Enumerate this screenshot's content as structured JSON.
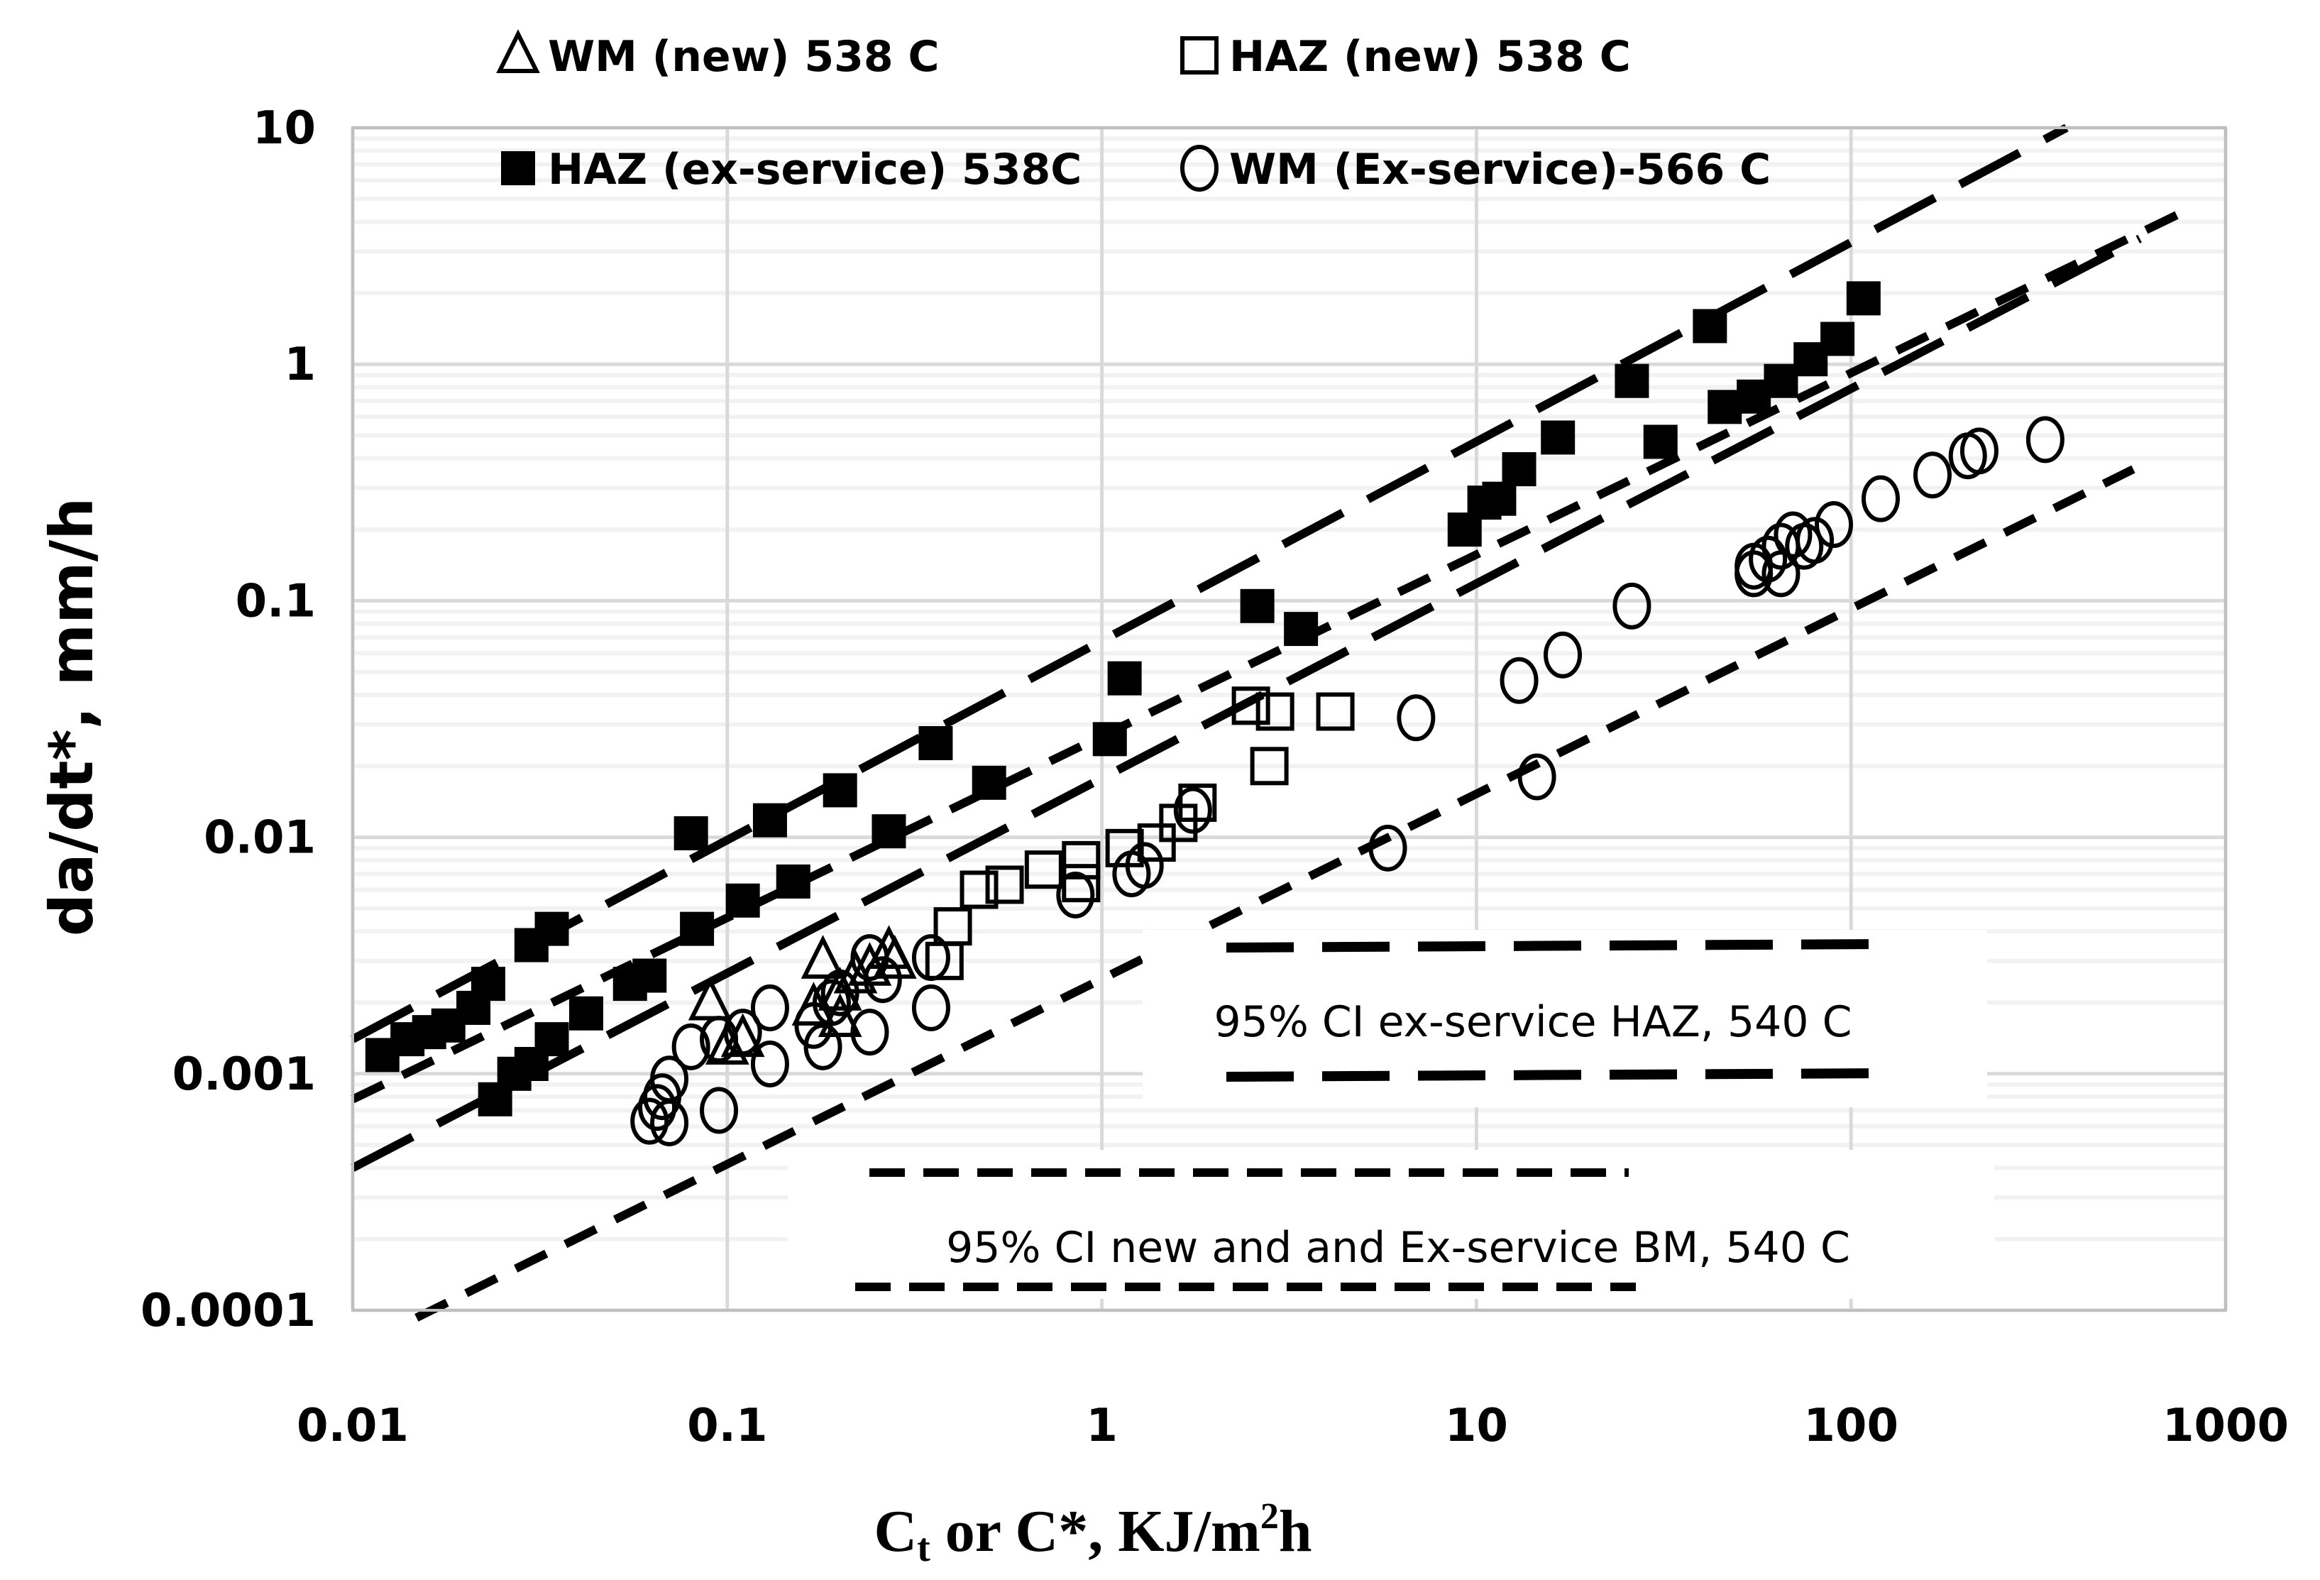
{
  "chart_data": {
    "type": "scatter",
    "title": "",
    "xlabel": {
      "main": "C",
      "sub": "t",
      "rest": " or C*, KJ/m",
      "sup": "2",
      "end": "h"
    },
    "ylabel": "da/dt*, mm/h",
    "xscale": "log",
    "yscale": "log",
    "xlim": [
      0.01,
      1000
    ],
    "ylim": [
      0.0001,
      10
    ],
    "x_ticks": [
      "0.01",
      "0.1",
      "1",
      "10",
      "100",
      "1000"
    ],
    "y_ticks": [
      "0.0001",
      "0.001",
      "0.01",
      "0.1",
      "1",
      "10"
    ],
    "grid": "major vertical and horizontal, minor horizontal",
    "legend_position": "top",
    "series": [
      {
        "name": "WM (new) 538 C",
        "marker": "open-triangle",
        "points": [
          [
            0.09,
            0.002
          ],
          [
            0.1,
            0.0013
          ],
          [
            0.11,
            0.0014
          ],
          [
            0.17,
            0.0019
          ],
          [
            0.18,
            0.003
          ],
          [
            0.2,
            0.0022
          ],
          [
            0.2,
            0.0017
          ],
          [
            0.22,
            0.0026
          ],
          [
            0.24,
            0.0028
          ],
          [
            0.27,
            0.0033
          ],
          [
            0.28,
            0.003
          ]
        ]
      },
      {
        "name": "HAZ (new) 538 C",
        "marker": "open-square",
        "points": [
          [
            0.38,
            0.003
          ],
          [
            0.4,
            0.0042
          ],
          [
            0.47,
            0.006
          ],
          [
            0.55,
            0.0063
          ],
          [
            0.7,
            0.0073
          ],
          [
            0.88,
            0.0064
          ],
          [
            0.88,
            0.008
          ],
          [
            1.15,
            0.009
          ],
          [
            1.4,
            0.0095
          ],
          [
            1.6,
            0.0115
          ],
          [
            1.8,
            0.014
          ],
          [
            2.5,
            0.036
          ],
          [
            2.8,
            0.02
          ],
          [
            2.9,
            0.034
          ],
          [
            4.2,
            0.034
          ]
        ]
      },
      {
        "name": "HAZ (ex-service) 538C",
        "marker": "filled-square",
        "points": [
          [
            0.012,
            0.0012
          ],
          [
            0.014,
            0.0014
          ],
          [
            0.016,
            0.0015
          ],
          [
            0.018,
            0.0016
          ],
          [
            0.021,
            0.0019
          ],
          [
            0.023,
            0.0024
          ],
          [
            0.024,
            0.00078
          ],
          [
            0.027,
            0.001
          ],
          [
            0.03,
            0.0011
          ],
          [
            0.03,
            0.0035
          ],
          [
            0.034,
            0.0014
          ],
          [
            0.034,
            0.0041
          ],
          [
            0.042,
            0.0018
          ],
          [
            0.055,
            0.0024
          ],
          [
            0.062,
            0.0026
          ],
          [
            0.08,
            0.0104
          ],
          [
            0.083,
            0.0041
          ],
          [
            0.11,
            0.0054
          ],
          [
            0.13,
            0.0118
          ],
          [
            0.15,
            0.0065
          ],
          [
            0.2,
            0.0158
          ],
          [
            0.27,
            0.0106
          ],
          [
            0.36,
            0.025
          ],
          [
            0.5,
            0.017
          ],
          [
            1.05,
            0.026
          ],
          [
            1.15,
            0.047
          ],
          [
            2.6,
            0.095
          ],
          [
            3.4,
            0.076
          ],
          [
            9.3,
            0.2
          ],
          [
            10.5,
            0.26
          ],
          [
            11.5,
            0.27
          ],
          [
            13,
            0.36
          ],
          [
            16.5,
            0.49
          ],
          [
            26,
            0.85
          ],
          [
            31,
            0.47
          ],
          [
            42,
            1.45
          ],
          [
            46,
            0.66
          ],
          [
            55,
            0.73
          ],
          [
            65,
            0.85
          ],
          [
            78,
            1.05
          ],
          [
            92,
            1.28
          ],
          [
            108,
            1.9
          ]
        ]
      },
      {
        "name": "WM (Ex-service)-566 C",
        "marker": "open-circle",
        "points": [
          [
            0.062,
            0.00063
          ],
          [
            0.065,
            0.00072
          ],
          [
            0.067,
            0.0008
          ],
          [
            0.07,
            0.00062
          ],
          [
            0.07,
            0.00095
          ],
          [
            0.08,
            0.0013
          ],
          [
            0.095,
            0.0007
          ],
          [
            0.095,
            0.0014
          ],
          [
            0.11,
            0.0015
          ],
          [
            0.13,
            0.0011
          ],
          [
            0.13,
            0.0019
          ],
          [
            0.17,
            0.0016
          ],
          [
            0.18,
            0.0013
          ],
          [
            0.19,
            0.002
          ],
          [
            0.2,
            0.0022
          ],
          [
            0.24,
            0.0015
          ],
          [
            0.24,
            0.0031
          ],
          [
            0.26,
            0.0025
          ],
          [
            0.35,
            0.0019
          ],
          [
            0.35,
            0.0031
          ],
          [
            0.85,
            0.0057
          ],
          [
            1.2,
            0.007
          ],
          [
            1.3,
            0.0076
          ],
          [
            1.75,
            0.013
          ],
          [
            5.8,
            0.009
          ],
          [
            6.9,
            0.032
          ],
          [
            13,
            0.046
          ],
          [
            14.5,
            0.018
          ],
          [
            17,
            0.059
          ],
          [
            26,
            0.095
          ],
          [
            55,
            0.13
          ],
          [
            55,
            0.14
          ],
          [
            60,
            0.15
          ],
          [
            65,
            0.13
          ],
          [
            65,
            0.17
          ],
          [
            70,
            0.19
          ],
          [
            75,
            0.17
          ],
          [
            80,
            0.18
          ],
          [
            90,
            0.21
          ],
          [
            120,
            0.27
          ],
          [
            165,
            0.34
          ],
          [
            205,
            0.41
          ],
          [
            220,
            0.43
          ],
          [
            330,
            0.48
          ]
        ]
      }
    ],
    "lines": [
      {
        "label": "95% CI ex-service HAZ, 540 C",
        "style": "long-dash",
        "from": [
          0.01,
          0.0014
        ],
        "to": [
          376,
          10
        ]
      },
      {
        "label": "95% CI ex-service HAZ, 540 C",
        "style": "long-dash",
        "from": [
          0.01,
          0.0004
        ],
        "to": [
          590,
          3.4
        ]
      },
      {
        "label": "",
        "style": "short-dash",
        "from": [
          0.01,
          0.00078
        ],
        "to": [
          815,
          4.6
        ]
      },
      {
        "label": "95% CI new and and Ex-service BM, 540 C",
        "style": "short-dash",
        "from": [
          0.0148,
          9.3e-05
        ],
        "to": [
          567,
          0.36
        ]
      }
    ],
    "annotations": {
      "haz": "95% CI ex-service HAZ, 540 C",
      "bm": "95% CI new and and Ex-service BM, 540 C"
    },
    "colors": {
      "marker": "#000000",
      "major_grid": "#d9d9d9",
      "minor_grid": "#f2f2f2",
      "axis": "#bfbfbf"
    }
  }
}
